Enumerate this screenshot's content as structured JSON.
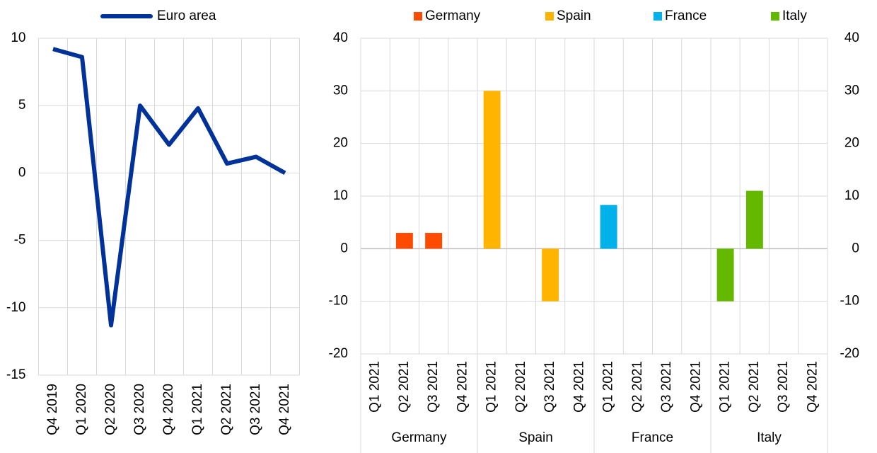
{
  "chart_data": [
    {
      "type": "line",
      "categories": [
        "Q4 2019",
        "Q1 2020",
        "Q2 2020",
        "Q3 2020",
        "Q4 2020",
        "Q1 2021",
        "Q2 2021",
        "Q3 2021",
        "Q4 2021"
      ],
      "series": [
        {
          "name": "Euro area",
          "color": "#003299",
          "values": [
            9.2,
            8.6,
            -11.3,
            5.0,
            2.1,
            4.8,
            0.7,
            1.2,
            0.0
          ]
        }
      ],
      "ylim": [
        -15,
        10
      ],
      "yticks": [
        -15,
        -10,
        -5,
        0,
        5,
        10
      ],
      "grid": true
    },
    {
      "type": "bar",
      "categories": [
        "Q1 2021",
        "Q2 2021",
        "Q3 2021",
        "Q4 2021",
        "Q1 2021",
        "Q2 2021",
        "Q3 2021",
        "Q4 2021",
        "Q1 2021",
        "Q2 2021",
        "Q3 2021",
        "Q4 2021",
        "Q1 2021",
        "Q2 2021",
        "Q3 2021",
        "Q4 2021"
      ],
      "groups": [
        "Germany",
        "Spain",
        "France",
        "Italy"
      ],
      "series": [
        {
          "name": "Germany",
          "color": "#ff4b00",
          "values": [
            null,
            3,
            3,
            null,
            null,
            null,
            null,
            null,
            null,
            null,
            null,
            null,
            null,
            null,
            null,
            null
          ]
        },
        {
          "name": "Spain",
          "color": "#ffb400",
          "values": [
            null,
            null,
            null,
            null,
            30,
            null,
            -10,
            null,
            null,
            null,
            null,
            null,
            null,
            null,
            null,
            null
          ]
        },
        {
          "name": "France",
          "color": "#00b1ea",
          "values": [
            null,
            null,
            null,
            null,
            null,
            null,
            null,
            null,
            8.3,
            null,
            null,
            null,
            null,
            null,
            null,
            null
          ]
        },
        {
          "name": "Italy",
          "color": "#65b800",
          "values": [
            null,
            null,
            null,
            null,
            null,
            null,
            null,
            null,
            null,
            null,
            null,
            null,
            -10,
            11,
            null,
            null
          ]
        }
      ],
      "ylim": [
        -20,
        40
      ],
      "yticks": [
        -20,
        -10,
        0,
        10,
        20,
        30,
        40
      ],
      "y2lim": [
        -20,
        40
      ],
      "y2ticks": [
        -20,
        -10,
        0,
        10,
        20,
        30,
        40
      ],
      "grid": true
    }
  ]
}
